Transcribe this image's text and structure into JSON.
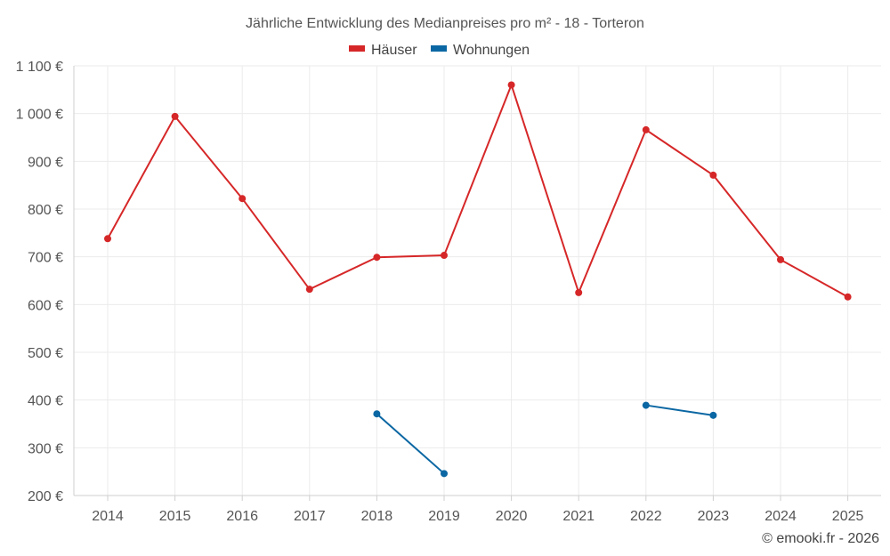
{
  "chart_data": {
    "type": "line",
    "title": "Jährliche Entwicklung des Medianpreises pro m² - 18 - Torteron",
    "categories": [
      "2014",
      "2015",
      "2016",
      "2017",
      "2018",
      "2019",
      "2020",
      "2021",
      "2022",
      "2023",
      "2024",
      "2025"
    ],
    "series": [
      {
        "name": "Häuser",
        "color": "#d62728",
        "values": [
          738,
          994,
          822,
          632,
          699,
          703,
          1060,
          625,
          966,
          871,
          694,
          616
        ]
      },
      {
        "name": "Wohnungen",
        "color": "#0b67a3",
        "values": [
          null,
          null,
          null,
          null,
          371,
          246,
          null,
          null,
          389,
          368,
          null,
          null
        ]
      }
    ],
    "ylim": [
      200,
      1100
    ],
    "yticks": [
      200,
      300,
      400,
      500,
      600,
      700,
      800,
      900,
      1000,
      1100
    ],
    "ytick_labels": [
      "200 €",
      "300 €",
      "400 €",
      "500 €",
      "600 €",
      "700 €",
      "800 €",
      "900 €",
      "1 000 €",
      "1 100 €"
    ],
    "legend_position": "top-center",
    "grid": true,
    "xlabel": "",
    "ylabel": ""
  },
  "credit": "© emooki.fr - 2026"
}
